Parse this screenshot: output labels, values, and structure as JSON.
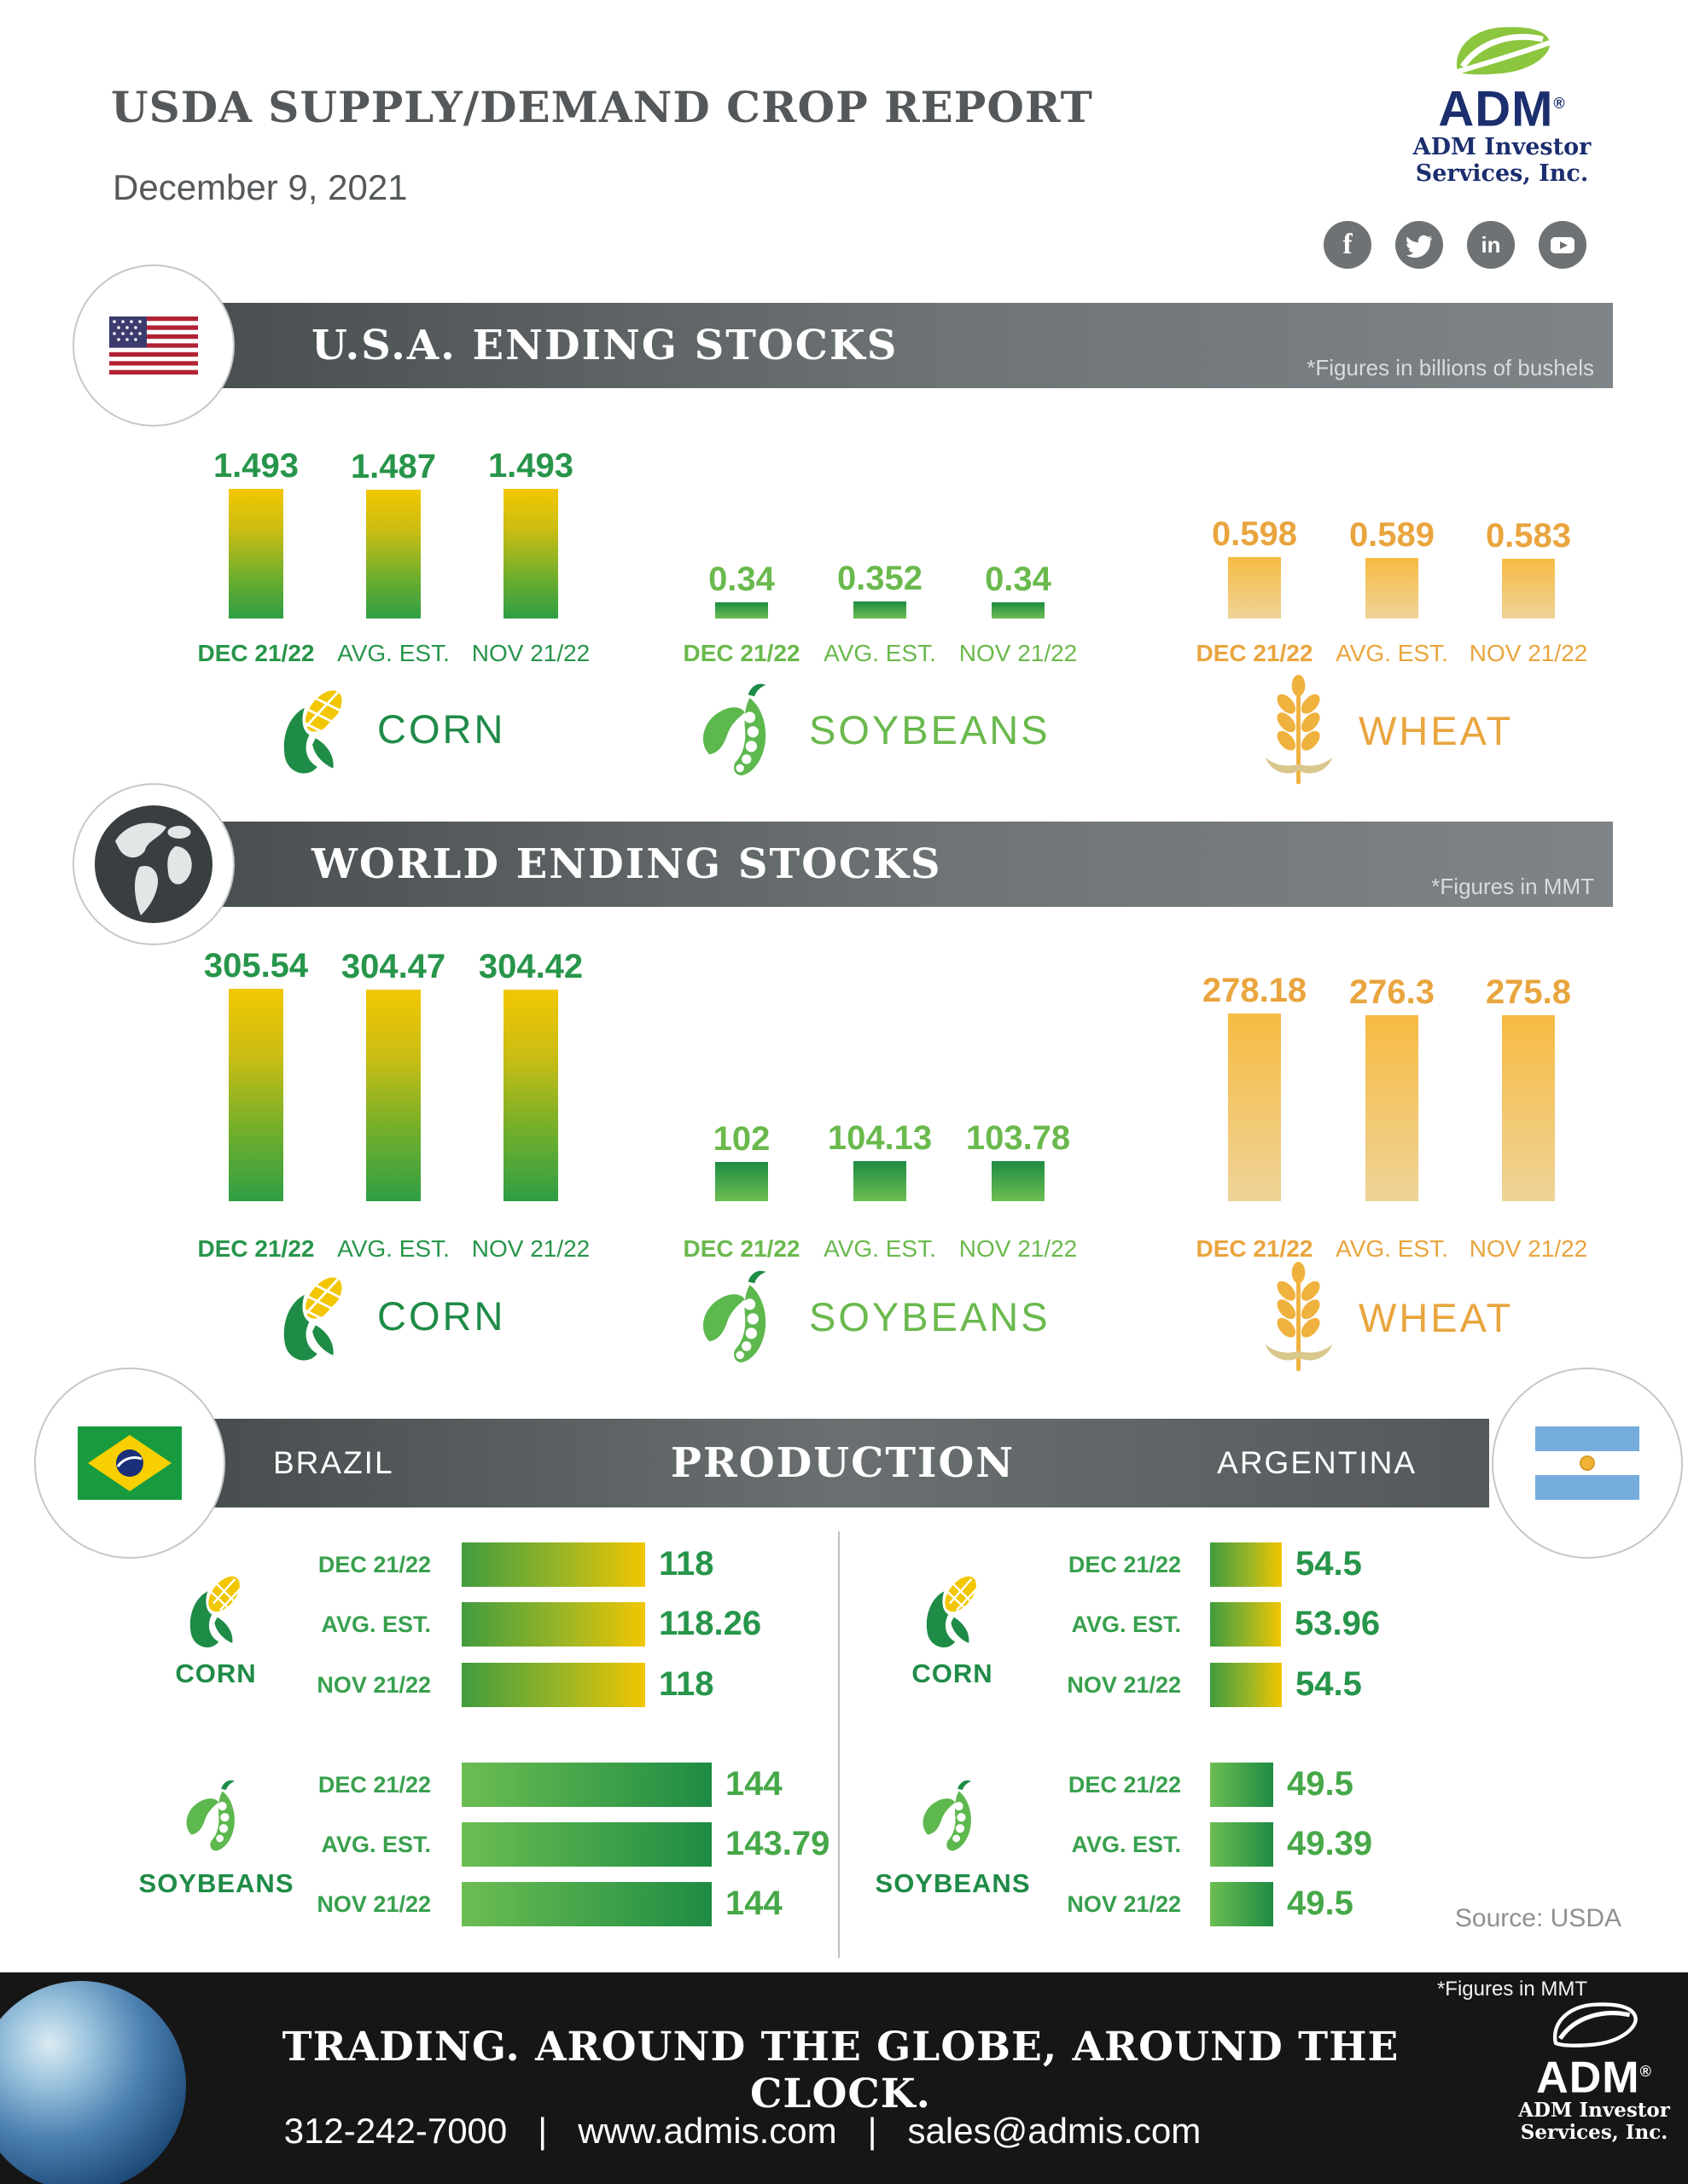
{
  "header": {
    "title": "USDA SUPPLY/DEMAND CROP REPORT",
    "date": "December 9, 2021",
    "logo": {
      "brand": "ADM",
      "trademark": "®",
      "subtitle_line1": "ADM Investor",
      "subtitle_line2": "Services, Inc."
    },
    "social": {
      "facebook_glyph": "f",
      "linkedin_glyph": "in"
    }
  },
  "sections": {
    "usa": {
      "title": "U.S.A. ENDING STOCKS",
      "note": "*Figures in billions of bushels"
    },
    "world": {
      "title": "WORLD ENDING STOCKS",
      "note": "*Figures in MMT"
    },
    "production": {
      "title": "PRODUCTION",
      "left_country": "BRAZIL",
      "right_country": "ARGENTINA",
      "source": "Source: USDA"
    }
  },
  "chart_data": [
    {
      "id": "usa-ending-stocks",
      "type": "bar",
      "title": "U.S.A. ENDING STOCKS",
      "unit": "billions of bushels",
      "grid": false,
      "legend": "none",
      "categories": [
        "DEC 21/22",
        "AVG. EST.",
        "NOV 21/22"
      ],
      "series": [
        {
          "name": "CORN",
          "values": [
            1.493,
            1.487,
            1.493
          ],
          "labels": [
            "1.493",
            "1.487",
            "1.493"
          ]
        },
        {
          "name": "SOYBEANS",
          "values": [
            0.34,
            0.352,
            0.34
          ],
          "labels": [
            "0.34",
            "0.352",
            "0.34"
          ]
        },
        {
          "name": "WHEAT",
          "values": [
            0.598,
            0.589,
            0.583
          ],
          "labels": [
            "0.598",
            "0.589",
            "0.583"
          ]
        }
      ]
    },
    {
      "id": "world-ending-stocks",
      "type": "bar",
      "title": "WORLD ENDING STOCKS",
      "unit": "MMT",
      "grid": false,
      "legend": "none",
      "categories": [
        "DEC 21/22",
        "AVG. EST.",
        "NOV 21/22"
      ],
      "series": [
        {
          "name": "CORN",
          "values": [
            305.54,
            304.47,
            304.42
          ],
          "labels": [
            "305.54",
            "304.47",
            "304.42"
          ]
        },
        {
          "name": "SOYBEANS",
          "values": [
            102,
            104.13,
            103.78
          ],
          "labels": [
            "102",
            "104.13",
            "103.78"
          ]
        },
        {
          "name": "WHEAT",
          "values": [
            278.18,
            276.3,
            275.8
          ],
          "labels": [
            "278.18",
            "276.3",
            "275.8"
          ]
        }
      ]
    },
    {
      "id": "production",
      "type": "bar",
      "orientation": "horizontal",
      "title": "PRODUCTION",
      "unit": "MMT",
      "grid": false,
      "legend": "none",
      "source": "Source: USDA",
      "categories": [
        "DEC 21/22",
        "AVG. EST.",
        "NOV 21/22"
      ],
      "groups": [
        {
          "country": "BRAZIL",
          "series": [
            {
              "name": "CORN",
              "values": [
                118,
                118.26,
                118
              ],
              "labels": [
                "118",
                "118.26",
                "118"
              ]
            },
            {
              "name": "SOYBEANS",
              "values": [
                144,
                143.79,
                144
              ],
              "labels": [
                "144",
                "143.79",
                "144"
              ]
            }
          ]
        },
        {
          "country": "ARGENTINA",
          "series": [
            {
              "name": "CORN",
              "values": [
                54.5,
                53.96,
                54.5
              ],
              "labels": [
                "54.5",
                "53.96",
                "54.5"
              ]
            },
            {
              "name": "SOYBEANS",
              "values": [
                49.5,
                49.39,
                49.5
              ],
              "labels": [
                "49.5",
                "49.39",
                "49.5"
              ]
            }
          ]
        }
      ]
    }
  ],
  "footer": {
    "note": "*Figures in MMT",
    "tagline": "TRADING. AROUND THE GLOBE, AROUND THE CLOCK.",
    "phone": "312-242-7000",
    "separator": "|",
    "website": "www.admis.com",
    "email": "sales@admis.com",
    "logo": {
      "brand": "ADM",
      "trademark": "®",
      "subtitle_line1": "ADM Investor",
      "subtitle_line2": "Services, Inc."
    }
  }
}
